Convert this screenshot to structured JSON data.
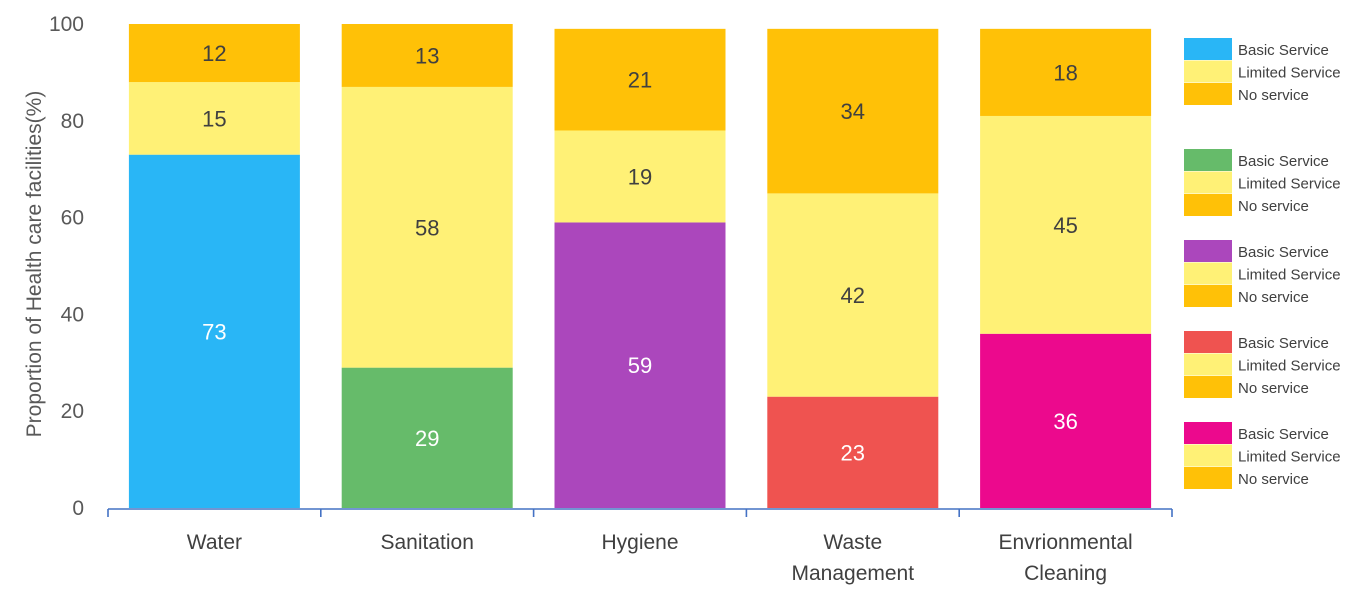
{
  "chart_data": {
    "type": "bar",
    "stacked": true,
    "title": "",
    "xlabel": "",
    "ylabel": "Proportion of Health care facilities(%)",
    "ylim": [
      0,
      100
    ],
    "yticks": [
      0,
      20,
      40,
      60,
      80,
      100
    ],
    "categories": [
      "Water",
      "Sanitation",
      "Hygiene",
      "Waste Management",
      "Envrionmental Cleaning"
    ],
    "category_lines": [
      [
        "Water"
      ],
      [
        "Sanitation"
      ],
      [
        "Hygiene"
      ],
      [
        "Waste",
        "Management"
      ],
      [
        "Envrionmental",
        "Cleaning"
      ]
    ],
    "series": [
      {
        "name": "Basic Service",
        "values": [
          73,
          29,
          59,
          23,
          36
        ],
        "colors": [
          "#29B6F6",
          "#66BB6A",
          "#AB47BC",
          "#EF5350",
          "#EC098D"
        ]
      },
      {
        "name": "Limited Service",
        "values": [
          15,
          58,
          19,
          42,
          45
        ],
        "color": "#FFF176"
      },
      {
        "name": "No service",
        "values": [
          12,
          13,
          21,
          34,
          18
        ],
        "color": "#FFC107"
      }
    ],
    "legend": {
      "position": "right",
      "groups": [
        [
          {
            "label": "Basic Service",
            "color": "#29B6F6"
          },
          {
            "label": "Limited Service",
            "color": "#FFF176"
          },
          {
            "label": "No service",
            "color": "#FFC107"
          }
        ],
        [
          {
            "label": "Basic Service",
            "color": "#66BB6A"
          },
          {
            "label": "Limited Service",
            "color": "#FFF176"
          },
          {
            "label": "No service",
            "color": "#FFC107"
          }
        ],
        [
          {
            "label": "Basic Service",
            "color": "#AB47BC"
          },
          {
            "label": "Limited Service",
            "color": "#FFF176"
          },
          {
            "label": "No service",
            "color": "#FFC107"
          }
        ],
        [
          {
            "label": "Basic Service",
            "color": "#EF5350"
          },
          {
            "label": "Limited Service",
            "color": "#FFF176"
          },
          {
            "label": "No service",
            "color": "#FFC107"
          }
        ],
        [
          {
            "label": "Basic Service",
            "color": "#EC098D"
          },
          {
            "label": "Limited Service",
            "color": "#FFF176"
          },
          {
            "label": "No service",
            "color": "#FFC107"
          }
        ]
      ]
    },
    "grid": false
  }
}
